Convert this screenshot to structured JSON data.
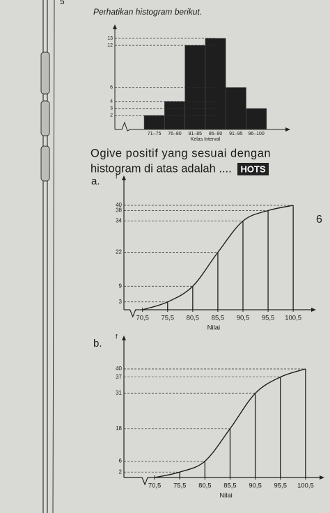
{
  "question_number": "5",
  "intro": "Perhatikan histogram berikut.",
  "chart_data": [
    {
      "type": "bar",
      "categories": [
        "71–75",
        "76–80",
        "81–85",
        "86–90",
        "91–95",
        "96–100"
      ],
      "values": [
        2,
        4,
        12,
        13,
        6,
        3
      ],
      "color": "#1e1e1e",
      "ylim": [
        0,
        14
      ],
      "yticks": [
        2,
        3,
        4,
        6,
        12,
        13
      ],
      "xlabel": "Kelas Interval"
    },
    {
      "type": "line",
      "x": [
        70.5,
        75.5,
        80.5,
        85.5,
        90.5,
        95.5,
        100.5
      ],
      "values": [
        0,
        3,
        9,
        22,
        34,
        38,
        40
      ],
      "color": "#1e1e1e",
      "xlim": [
        66.8,
        104.5
      ],
      "ylim": [
        0,
        48
      ],
      "xticks": [
        {
          "value": 70.5,
          "label": "70,5"
        },
        {
          "value": 75.5,
          "label": "75,5"
        },
        {
          "value": 80.5,
          "label": "80,5"
        },
        {
          "value": 85.5,
          "label": "85,5"
        },
        {
          "value": 90.5,
          "label": "90,5"
        },
        {
          "value": 95.5,
          "label": "95,5"
        },
        {
          "value": 100.5,
          "label": "100,5"
        }
      ],
      "yticks": [
        3,
        9,
        22,
        34,
        38,
        40
      ],
      "xlabel": "Nilai",
      "ylabel": "f"
    },
    {
      "type": "line",
      "x": [
        70.5,
        75.5,
        80.5,
        85.5,
        90.5,
        95.5,
        100.5
      ],
      "values": [
        0,
        2,
        6,
        18,
        31,
        37,
        40
      ],
      "color": "#1e1e1e",
      "xlim": [
        64.4,
        103.7
      ],
      "ylim": [
        0,
        50
      ],
      "xticks": [
        {
          "value": 70.5,
          "label": "70,5"
        },
        {
          "value": 75.5,
          "label": "75,5"
        },
        {
          "value": 80.5,
          "label": "80,5"
        },
        {
          "value": 85.5,
          "label": "85,5"
        },
        {
          "value": 90.5,
          "label": "90,5"
        },
        {
          "value": 95.5,
          "label": "95,5"
        },
        {
          "value": 100.5,
          "label": "100,5"
        }
      ],
      "yticks": [
        2,
        6,
        18,
        31,
        37,
        40
      ],
      "xlabel": "Nilai",
      "ylabel": "f"
    }
  ],
  "question": {
    "line1": "Ogive positif yang sesuai dengan",
    "line2": "histogram di atas adalah ....",
    "badge": "HOTS"
  },
  "options": [
    "a.",
    "b."
  ],
  "page_number": "6"
}
